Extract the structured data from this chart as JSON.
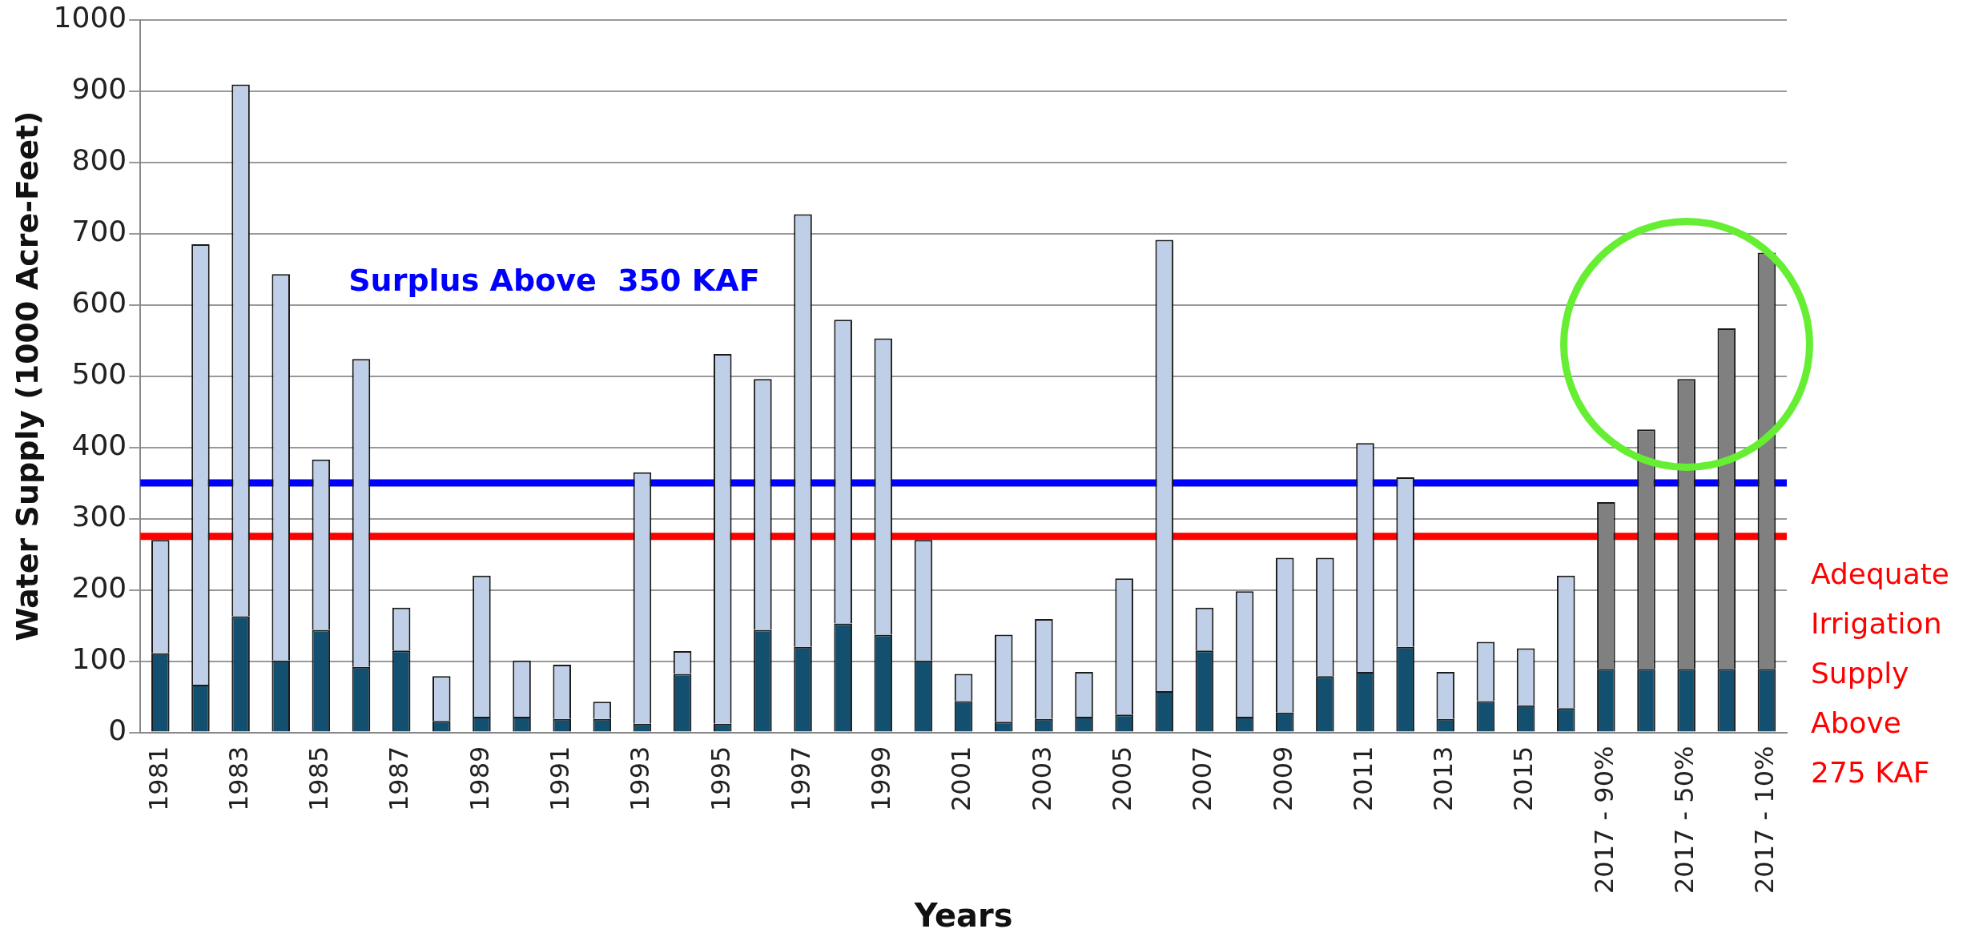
{
  "chart_data": {
    "type": "bar",
    "xlabel": "Years",
    "ylabel": "Water Supply (1000 Acre-Feet)",
    "categories": [
      "1981",
      null,
      "1983",
      null,
      "1985",
      null,
      "1987",
      null,
      "1989",
      null,
      "1991",
      null,
      "1993",
      null,
      "1995",
      null,
      "1997",
      null,
      "1999",
      null,
      "2001",
      null,
      "2003",
      null,
      "2005",
      null,
      "2007",
      null,
      "2009",
      null,
      "2011",
      null,
      "2013",
      null,
      "2015",
      null,
      "2017 - 90%",
      null,
      "2017 - 50%",
      null,
      "2017 - 10%"
    ],
    "stacked": true,
    "series": [
      {
        "color": "#134f6f",
        "values": [
          111,
          67,
          163,
          101,
          144,
          92,
          115,
          16,
          22,
          22,
          19,
          19,
          12,
          82,
          12,
          144,
          120,
          153,
          137,
          101,
          44,
          15,
          19,
          22,
          25,
          58,
          115,
          22,
          28,
          79,
          85,
          120,
          19,
          44,
          38,
          34,
          89,
          89,
          89,
          89,
          89
        ]
      },
      {
        "color": "#bfcfe7",
        "values": [
          159,
          618,
          746,
          542,
          239,
          432,
          60,
          63,
          198,
          79,
          76,
          24,
          353,
          32,
          519,
          352,
          607,
          426,
          416,
          169,
          38,
          122,
          140,
          63,
          191,
          633,
          60,
          176,
          217,
          166,
          321,
          238,
          66,
          83,
          80,
          186,
          null,
          null,
          null,
          null,
          null
        ]
      },
      {
        "color": "#808080",
        "values": [
          null,
          null,
          null,
          null,
          null,
          null,
          null,
          null,
          null,
          null,
          null,
          null,
          null,
          null,
          null,
          null,
          null,
          null,
          null,
          null,
          null,
          null,
          null,
          null,
          null,
          null,
          null,
          null,
          null,
          null,
          null,
          null,
          null,
          null,
          null,
          null,
          234,
          336,
          407,
          478,
          584
        ]
      }
    ],
    "ylim": [
      0,
      1000
    ],
    "yticks": [
      0,
      100,
      200,
      300,
      400,
      500,
      600,
      700,
      800,
      900,
      1000
    ],
    "grid": "y",
    "ref_lines": [
      {
        "axis": "y",
        "value": 350,
        "label": "Surplus Above  350 KAF",
        "color": "#0000ff"
      },
      {
        "axis": "y",
        "value": 275,
        "label": "Adequate Irrigation Supply Above 275 KAF",
        "color": "#ff0000"
      }
    ]
  }
}
